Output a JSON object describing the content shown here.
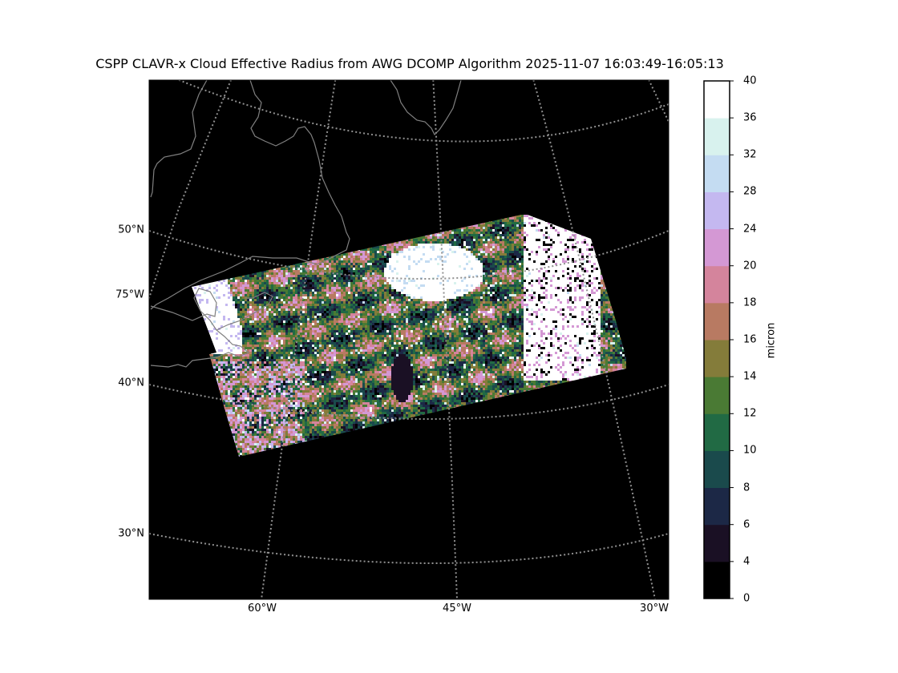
{
  "title": "CSPP CLAVR-x Cloud Effective Radius from AWG DCOMP Algorithm 2025-11-07 16:03:49-16:05:13",
  "map": {
    "background_color": "#000000",
    "gridline_color": "#909090",
    "coastline_color": "#808080",
    "lat_labels": [
      "50°N",
      "75°W",
      "40°N",
      "30°N"
    ],
    "lon_labels": [
      "60°W",
      "45°W",
      "30°W"
    ]
  },
  "colorbar": {
    "label": "micron",
    "ticks": [
      "0",
      "4",
      "6",
      "8",
      "10",
      "12",
      "14",
      "16",
      "18",
      "20",
      "24",
      "28",
      "32",
      "36",
      "40"
    ],
    "bins": [
      {
        "from": 0,
        "to": 4,
        "color": "#000000"
      },
      {
        "from": 4,
        "to": 6,
        "color": "#1a1024"
      },
      {
        "from": 6,
        "to": 8,
        "color": "#1c2846"
      },
      {
        "from": 8,
        "to": 10,
        "color": "#1a4a4c"
      },
      {
        "from": 10,
        "to": 12,
        "color": "#216a44"
      },
      {
        "from": 12,
        "to": 14,
        "color": "#4a7a34"
      },
      {
        "from": 14,
        "to": 16,
        "color": "#847c3a"
      },
      {
        "from": 16,
        "to": 18,
        "color": "#b87a62"
      },
      {
        "from": 18,
        "to": 20,
        "color": "#d4849c"
      },
      {
        "from": 20,
        "to": 24,
        "color": "#d498d4"
      },
      {
        "from": 24,
        "to": 28,
        "color": "#c4b8f0"
      },
      {
        "from": 28,
        "to": 32,
        "color": "#c4dcf2"
      },
      {
        "from": 32,
        "to": 36,
        "color": "#d8f2ee"
      },
      {
        "from": 36,
        "to": 40,
        "color": "#ffffff"
      }
    ]
  }
}
